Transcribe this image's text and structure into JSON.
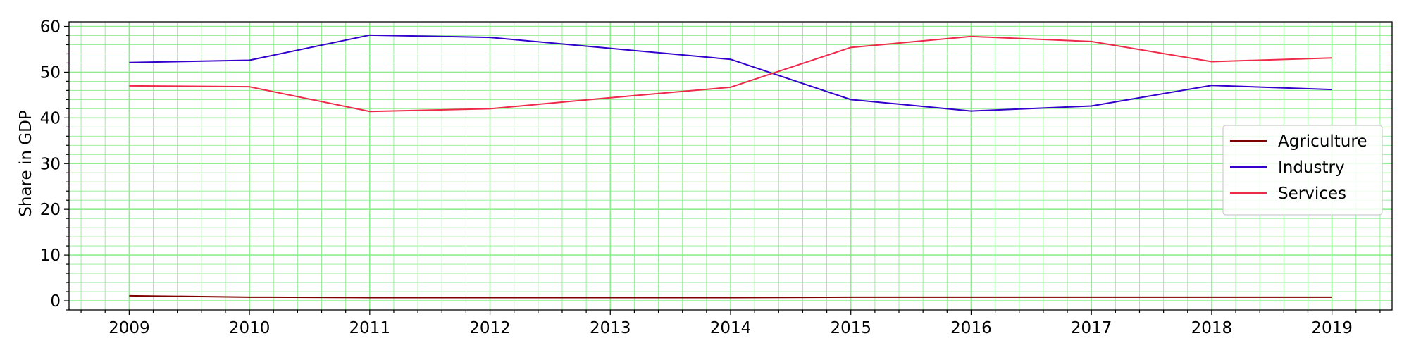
{
  "chart_data": {
    "type": "line",
    "title": "",
    "xlabel": "",
    "ylabel": "Share in GDP",
    "x": [
      "2009",
      "2010",
      "2011",
      "2012",
      "2013",
      "2014",
      "2015",
      "2016",
      "2017",
      "2018",
      "2019"
    ],
    "xlim": [
      2008.5,
      2019.5
    ],
    "ylim": [
      -2,
      61
    ],
    "yticks": [
      0,
      10,
      20,
      30,
      40,
      50,
      60
    ],
    "grid": true,
    "grid_color": "#90ee90",
    "legend_position": "center-right",
    "series": [
      {
        "name": "Agriculture",
        "color": "#800000",
        "values": [
          1.1,
          0.8,
          0.7,
          0.7,
          0.7,
          0.7,
          0.8,
          0.8,
          0.8,
          0.8,
          0.8
        ]
      },
      {
        "name": "Industry",
        "color": "#3300cc",
        "values": [
          52.1,
          52.6,
          58.1,
          57.6,
          55.2,
          52.8,
          44.0,
          41.5,
          42.6,
          47.1,
          46.2
        ]
      },
      {
        "name": "Services",
        "color": "#ee2a4a",
        "values": [
          47.0,
          46.8,
          41.4,
          42.0,
          44.4,
          46.7,
          55.4,
          57.8,
          56.7,
          52.3,
          53.1
        ]
      }
    ]
  }
}
